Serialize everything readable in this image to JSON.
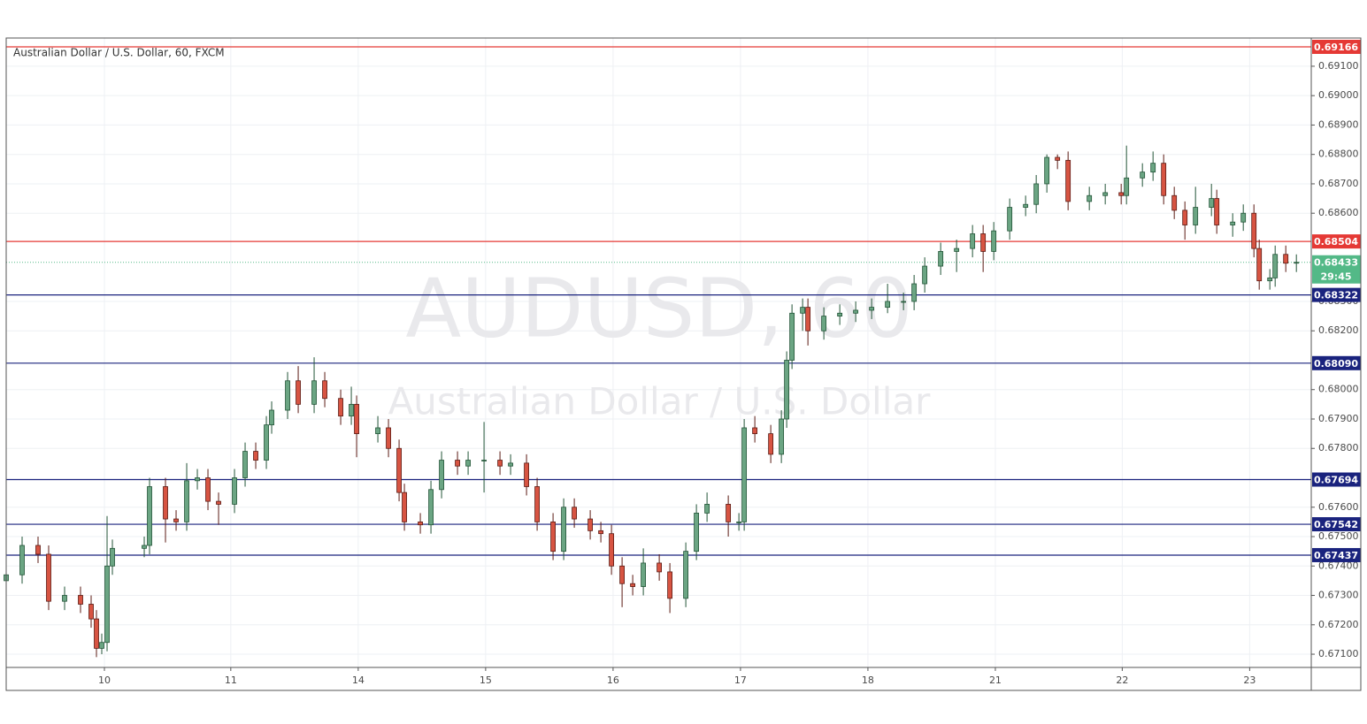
{
  "chart_data": {
    "type": "candlestick",
    "title": "Australian Dollar / U.S. Dollar, 60, FXCM",
    "watermark_symbol": "AUDUSD, 60",
    "watermark_name": "Australian Dollar / U.S. Dollar",
    "up_color": "#6ba583",
    "down_color": "#d75442",
    "up_edge": "#225437",
    "down_edge": "#5b1a13",
    "grid": true,
    "xlim": [
      0,
      245.8
    ],
    "xticks": [
      {
        "value": 18.5,
        "label": "10"
      },
      {
        "value": 42.3,
        "label": "11"
      },
      {
        "value": 66.3,
        "label": "14"
      },
      {
        "value": 90.3,
        "label": "15"
      },
      {
        "value": 114.3,
        "label": "16"
      },
      {
        "value": 138.3,
        "label": "17"
      },
      {
        "value": 162.3,
        "label": "18"
      },
      {
        "value": 186.3,
        "label": "21"
      },
      {
        "value": 210.2,
        "label": "22"
      },
      {
        "value": 234.2,
        "label": "23"
      }
    ],
    "ylim": [
      0.67055,
      0.69196
    ],
    "yticks": [
      {
        "value": 0.671,
        "label": "0.67100"
      },
      {
        "value": 0.672,
        "label": "0.67200"
      },
      {
        "value": 0.673,
        "label": "0.67300"
      },
      {
        "value": 0.674,
        "label": "0.67400"
      },
      {
        "value": 0.675,
        "label": "0.67500"
      },
      {
        "value": 0.676,
        "label": "0.67600"
      },
      {
        "value": 0.678,
        "label": "0.67800"
      },
      {
        "value": 0.679,
        "label": "0.67900"
      },
      {
        "value": 0.68,
        "label": "0.68000"
      },
      {
        "value": 0.682,
        "label": "0.68200"
      },
      {
        "value": 0.683,
        "label": "0.68300"
      },
      {
        "value": 0.686,
        "label": "0.68600"
      },
      {
        "value": 0.687,
        "label": "0.68700"
      },
      {
        "value": 0.688,
        "label": "0.68800"
      },
      {
        "value": 0.689,
        "label": "0.68900"
      },
      {
        "value": 0.69,
        "label": "0.69000"
      },
      {
        "value": 0.691,
        "label": "0.69100"
      }
    ],
    "levels": [
      {
        "value": 0.69166,
        "color": "#e53935"
      },
      {
        "value": 0.68504,
        "color": "#e53935"
      },
      {
        "value": 0.68322,
        "color": "#1a237e"
      },
      {
        "value": 0.6809,
        "label": "0.68090",
        "color": "#1a237e"
      },
      {
        "value": 0.67694,
        "color": "#1a237e"
      },
      {
        "value": 0.67542,
        "color": "#1a237e"
      },
      {
        "value": 0.67437,
        "color": "#1a237e"
      }
    ],
    "last_price": {
      "value": 0.68433,
      "countdown": "29:45",
      "color": "#53b987"
    },
    "x": [
      0,
      3,
      6,
      8,
      11,
      14,
      16,
      17,
      18,
      19,
      20,
      26,
      27,
      30,
      32,
      34,
      36,
      38,
      40,
      43,
      45,
      47,
      49,
      50,
      53,
      55,
      58,
      60,
      63,
      65,
      66,
      70,
      72,
      74,
      75,
      78,
      80,
      82,
      85,
      87,
      90,
      93,
      95,
      98,
      100,
      103,
      105,
      107,
      110,
      112,
      114,
      116,
      118,
      120,
      123,
      125,
      128,
      130,
      132,
      136,
      138,
      139,
      141,
      144,
      146,
      147,
      148,
      150,
      151,
      154,
      157,
      160,
      163,
      166,
      169,
      171,
      173,
      176,
      179,
      182,
      184,
      186,
      189,
      192,
      194,
      196,
      198,
      200,
      204,
      207,
      210,
      211,
      214,
      216,
      218,
      220,
      222,
      224,
      227,
      228,
      231,
      233,
      235,
      236,
      238,
      239,
      241,
      243
    ],
    "open": [
      0.6735,
      0.6737,
      0.6747,
      0.6744,
      0.6728,
      0.673,
      0.6727,
      0.6722,
      0.6712,
      0.6714,
      0.674,
      0.6746,
      0.6747,
      0.6767,
      0.6756,
      0.6755,
      0.6769,
      0.677,
      0.6762,
      0.6761,
      0.677,
      0.6779,
      0.6776,
      0.6788,
      0.6793,
      0.6803,
      0.6795,
      0.6803,
      0.6797,
      0.6791,
      0.6795,
      0.6785,
      0.6787,
      0.678,
      0.6765,
      0.6755,
      0.6754,
      0.6766,
      0.6776,
      0.6774,
      0.6776,
      0.6776,
      0.6774,
      0.6775,
      0.6767,
      0.6755,
      0.6745,
      0.676,
      0.6756,
      0.6752,
      0.6751,
      0.674,
      0.6734,
      0.6733,
      0.6741,
      0.6738,
      0.6729,
      0.6745,
      0.6758,
      0.6761,
      0.6755,
      0.6755,
      0.6787,
      0.6785,
      0.6778,
      0.679,
      0.681,
      0.6826,
      0.6828,
      0.682,
      0.6825,
      0.6826,
      0.6827,
      0.6828,
      0.683,
      0.683,
      0.6836,
      0.6842,
      0.6847,
      0.6848,
      0.6853,
      0.6847,
      0.6854,
      0.6862,
      0.6863,
      0.687,
      0.6879,
      0.6878,
      0.6864,
      0.6866,
      0.6867,
      0.6866,
      0.6872,
      0.6874,
      0.6877,
      0.6866,
      0.6861,
      0.6856,
      0.6862,
      0.6865,
      0.6856,
      0.6857,
      0.686,
      0.6848,
      0.6837,
      0.6838,
      0.6846,
      0.6843
    ],
    "high": [
      0.674,
      0.675,
      0.675,
      0.6747,
      0.6733,
      0.6733,
      0.673,
      0.6725,
      0.6717,
      0.6757,
      0.6749,
      0.675,
      0.677,
      0.677,
      0.6759,
      0.6775,
      0.6773,
      0.6773,
      0.6765,
      0.6773,
      0.6782,
      0.6782,
      0.6791,
      0.6796,
      0.6806,
      0.6808,
      0.6811,
      0.6806,
      0.68,
      0.6801,
      0.6798,
      0.6791,
      0.679,
      0.6783,
      0.6768,
      0.6758,
      0.6769,
      0.6779,
      0.6779,
      0.6779,
      0.6789,
      0.6779,
      0.6778,
      0.6778,
      0.677,
      0.6758,
      0.6763,
      0.6763,
      0.6759,
      0.6755,
      0.6754,
      0.6743,
      0.6737,
      0.6746,
      0.6744,
      0.6741,
      0.6748,
      0.6761,
      0.6765,
      0.6764,
      0.6758,
      0.679,
      0.6791,
      0.6788,
      0.6793,
      0.6813,
      0.6829,
      0.6831,
      0.6831,
      0.6828,
      0.6829,
      0.683,
      0.6831,
      0.6836,
      0.6833,
      0.6839,
      0.6845,
      0.685,
      0.6851,
      0.6856,
      0.6856,
      0.6857,
      0.6865,
      0.6866,
      0.6873,
      0.688,
      0.688,
      0.6881,
      0.6869,
      0.687,
      0.687,
      0.6883,
      0.6877,
      0.6881,
      0.688,
      0.6869,
      0.6864,
      0.6869,
      0.687,
      0.6868,
      0.686,
      0.6863,
      0.6863,
      0.6851,
      0.6841,
      0.6849,
      0.6849,
      0.6846
    ],
    "low": [
      0.6732,
      0.6734,
      0.6741,
      0.6725,
      0.6725,
      0.6724,
      0.6719,
      0.6709,
      0.671,
      0.6711,
      0.6737,
      0.6743,
      0.6744,
      0.6748,
      0.6752,
      0.6752,
      0.6766,
      0.6759,
      0.6754,
      0.6758,
      0.6767,
      0.6773,
      0.6773,
      0.6785,
      0.679,
      0.6792,
      0.6792,
      0.6794,
      0.6788,
      0.6788,
      0.6777,
      0.6782,
      0.6777,
      0.6762,
      0.6752,
      0.6751,
      0.6751,
      0.6763,
      0.6771,
      0.6771,
      0.6765,
      0.6771,
      0.6771,
      0.6764,
      0.6752,
      0.6742,
      0.6742,
      0.6753,
      0.6749,
      0.6748,
      0.6737,
      0.6726,
      0.673,
      0.673,
      0.6735,
      0.6724,
      0.6726,
      0.6742,
      0.6755,
      0.675,
      0.6752,
      0.6752,
      0.6782,
      0.6775,
      0.6775,
      0.6787,
      0.6807,
      0.682,
      0.6815,
      0.6817,
      0.6822,
      0.6823,
      0.6824,
      0.6826,
      0.6827,
      0.6827,
      0.6833,
      0.6839,
      0.684,
      0.6845,
      0.684,
      0.6844,
      0.6851,
      0.6859,
      0.686,
      0.6867,
      0.6875,
      0.6861,
      0.6861,
      0.6863,
      0.6863,
      0.6863,
      0.6869,
      0.6871,
      0.6863,
      0.6858,
      0.6851,
      0.6853,
      0.6859,
      0.6853,
      0.6852,
      0.6854,
      0.6845,
      0.6834,
      0.6834,
      0.6835,
      0.684,
      0.684
    ],
    "close": [
      0.6737,
      0.6747,
      0.6744,
      0.6728,
      0.673,
      0.6727,
      0.6722,
      0.6712,
      0.6714,
      0.674,
      0.6746,
      0.6747,
      0.6767,
      0.6756,
      0.6755,
      0.6769,
      0.677,
      0.6762,
      0.6761,
      0.677,
      0.6779,
      0.6776,
      0.6788,
      0.6793,
      0.6803,
      0.6795,
      0.6803,
      0.6797,
      0.6791,
      0.6795,
      0.6785,
      0.6787,
      0.678,
      0.6765,
      0.6755,
      0.6754,
      0.6766,
      0.6776,
      0.6774,
      0.6776,
      0.6776,
      0.6774,
      0.6775,
      0.6767,
      0.6755,
      0.6745,
      0.676,
      0.6756,
      0.6752,
      0.6751,
      0.674,
      0.6734,
      0.6733,
      0.6741,
      0.6738,
      0.6729,
      0.6745,
      0.6758,
      0.6761,
      0.6755,
      0.6755,
      0.6787,
      0.6785,
      0.6778,
      0.679,
      0.681,
      0.6826,
      0.6828,
      0.682,
      0.6825,
      0.6826,
      0.6827,
      0.6828,
      0.683,
      0.683,
      0.6836,
      0.6842,
      0.6847,
      0.6848,
      0.6853,
      0.6847,
      0.6854,
      0.6862,
      0.6863,
      0.687,
      0.6879,
      0.6878,
      0.6864,
      0.6866,
      0.6867,
      0.6866,
      0.6872,
      0.6874,
      0.6877,
      0.6866,
      0.6861,
      0.6856,
      0.6862,
      0.6865,
      0.6856,
      0.6857,
      0.686,
      0.6848,
      0.6837,
      0.6838,
      0.6846,
      0.6843,
      0.68433
    ]
  }
}
